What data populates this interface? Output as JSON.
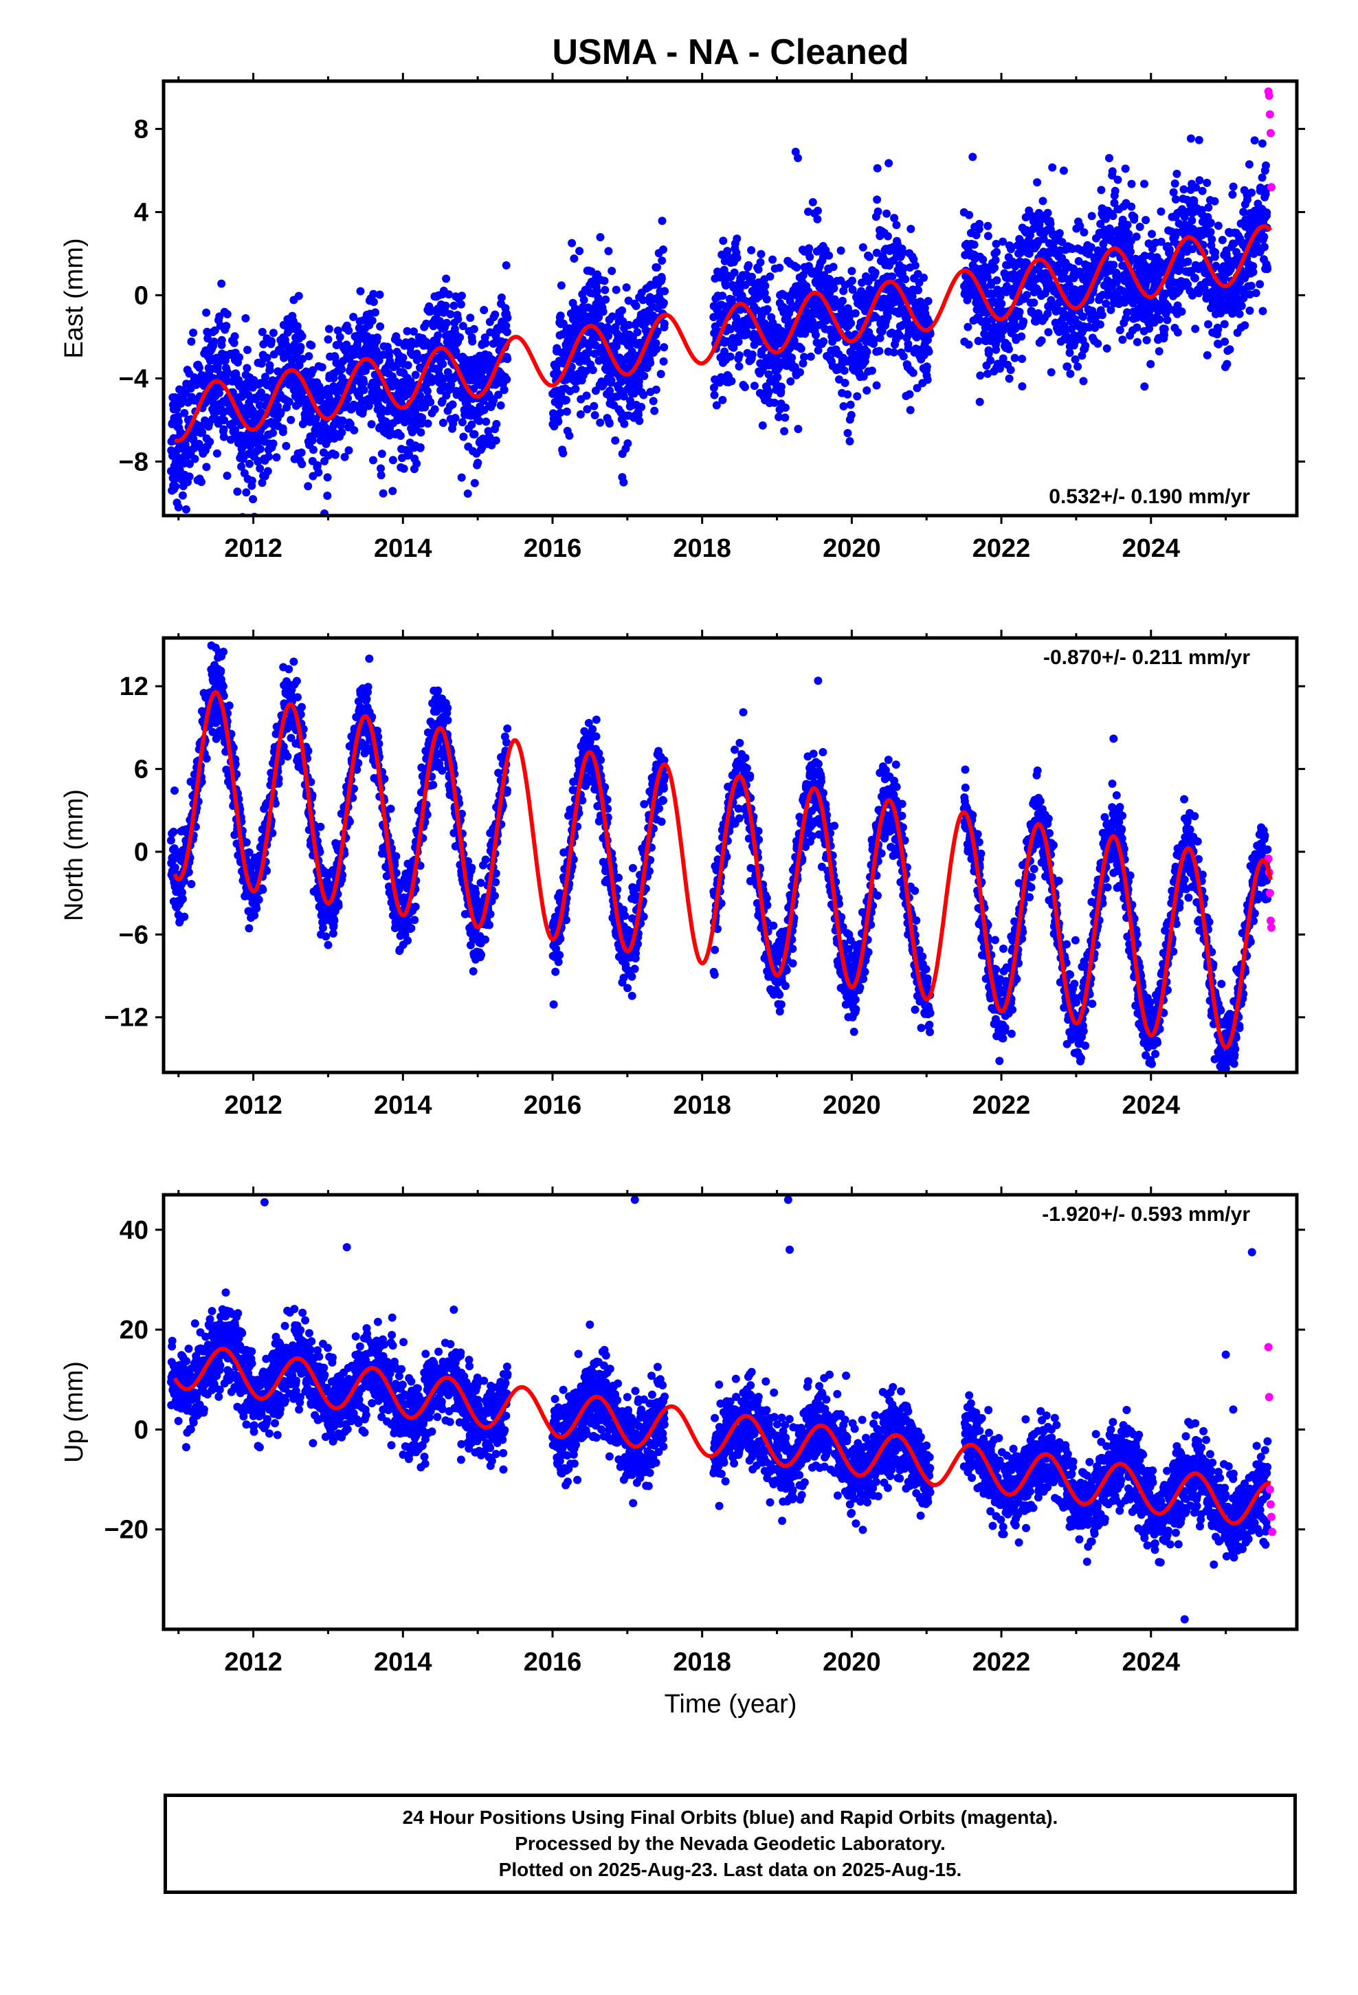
{
  "title": "USMA  - NA - Cleaned",
  "x_axis_label": "Time (year)",
  "caption": [
    "24 Hour Positions Using Final Orbits (blue) and Rapid Orbits (magenta).",
    "Processed by the Nevada Geodetic Laboratory.",
    "Plotted on 2025-Aug-23. Last data on 2025-Aug-15."
  ],
  "colors": {
    "final_orbits": "#0000ff",
    "rapid_orbits": "#ff00ff",
    "model_fit": "#ff0000",
    "frame": "#000000"
  },
  "chart_data": [
    {
      "type": "scatter",
      "panel": "east",
      "ylabel": "East (mm)",
      "rate_label": "0.532+/- 0.190 mm/yr",
      "rate_placement": "bottom-right",
      "xlim": [
        2010.8,
        2025.95
      ],
      "ylim": [
        -10.6,
        10.3
      ],
      "x_ticks": [
        2012,
        2014,
        2016,
        2018,
        2020,
        2022,
        2024
      ],
      "y_ticks": [
        8,
        4,
        0,
        -4,
        -8
      ],
      "y_tick_labels": [
        "8",
        "4",
        "0",
        "−4",
        "−8"
      ],
      "trend": {
        "intercept_at_2011": -5.7,
        "rate_mm_per_yr": 0.532
      },
      "seasonal": {
        "amplitude": 1.3,
        "phase_year": 0.5
      },
      "noise_sd": 1.6,
      "data_gaps": [
        [
          2015.4,
          2016.0
        ],
        [
          2017.5,
          2018.15
        ],
        [
          2021.05,
          2021.5
        ]
      ],
      "rapid_points": {
        "x": [
          2025.57,
          2025.58,
          2025.59,
          2025.6,
          2025.61
        ],
        "y": [
          9.8,
          9.6,
          8.7,
          7.8,
          5.2
        ]
      },
      "outliers": {
        "x": [
          2019.25,
          2019.28,
          2012.95,
          2016.95,
          2011.0
        ],
        "y": [
          6.9,
          6.6,
          -10.5,
          -9.0,
          -10.2
        ]
      }
    },
    {
      "type": "scatter",
      "panel": "north",
      "ylabel": "North (mm)",
      "rate_label": "-0.870+/- 0.211 mm/yr",
      "rate_placement": "top-right",
      "xlim": [
        2010.8,
        2025.95
      ],
      "ylim": [
        -16,
        15.5
      ],
      "x_ticks": [
        2012,
        2014,
        2016,
        2018,
        2020,
        2022,
        2024
      ],
      "y_ticks": [
        12,
        6,
        0,
        -6,
        -12
      ],
      "y_tick_labels": [
        "12",
        "6",
        "0",
        "−6",
        "−12"
      ],
      "trend": {
        "intercept_at_2011": 5.0,
        "rate_mm_per_yr": -0.87
      },
      "seasonal": {
        "amplitude": 7.0,
        "phase_year": 0.5
      },
      "noise_sd": 1.4,
      "data_gaps": [
        [
          2015.4,
          2016.0
        ],
        [
          2017.5,
          2018.15
        ],
        [
          2021.05,
          2021.5
        ]
      ],
      "rapid_points": {
        "x": [
          2025.57,
          2025.58,
          2025.59,
          2025.6,
          2025.61
        ],
        "y": [
          -0.5,
          -1.5,
          -3.0,
          -5.0,
          -5.5
        ]
      },
      "outliers": {
        "x": [
          2024.95,
          2019.55,
          2011.6,
          2013.55,
          2023.5
        ],
        "y": [
          -15.5,
          12.4,
          14.5,
          14.0,
          8.2
        ]
      }
    },
    {
      "type": "scatter",
      "panel": "up",
      "ylabel": "Up (mm)",
      "rate_label": "-1.920+/- 0.593 mm/yr",
      "rate_placement": "top-right",
      "xlim": [
        2010.8,
        2025.95
      ],
      "ylim": [
        -40,
        47
      ],
      "x_ticks": [
        2012,
        2014,
        2016,
        2018,
        2020,
        2022,
        2024
      ],
      "y_ticks": [
        40,
        20,
        0,
        -20
      ],
      "y_tick_labels": [
        "40",
        "20",
        "0",
        "−20"
      ],
      "trend": {
        "intercept_at_2011": 12.8,
        "rate_mm_per_yr": -1.92
      },
      "seasonal": {
        "amplitude": 4.5,
        "phase_year": 0.6
      },
      "noise_sd": 4.0,
      "data_gaps": [
        [
          2015.4,
          2016.0
        ],
        [
          2017.5,
          2018.15
        ],
        [
          2021.05,
          2021.5
        ]
      ],
      "rapid_points": {
        "x": [
          2025.57,
          2025.58,
          2025.59,
          2025.6,
          2025.61,
          2025.62
        ],
        "y": [
          16.5,
          6.5,
          -12,
          -15,
          -17.5,
          -20.5
        ]
      },
      "outliers": {
        "x": [
          2012.15,
          2013.25,
          2017.1,
          2019.15,
          2019.17,
          2025.35,
          2024.45,
          2025.0,
          2025.1
        ],
        "y": [
          45.5,
          36.5,
          46,
          46,
          36,
          35.5,
          -38,
          15,
          4
        ]
      }
    }
  ]
}
